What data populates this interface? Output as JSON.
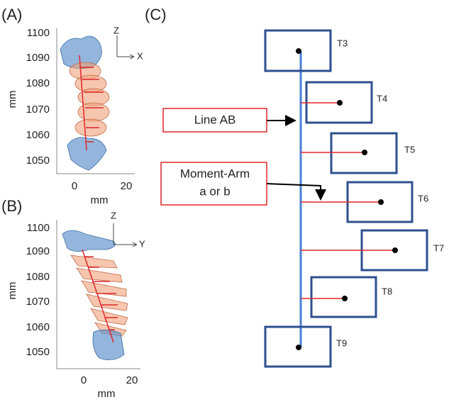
{
  "panels": [
    {
      "label": "(A)",
      "x_label": "mm",
      "y_label": "mm",
      "xticks": [
        0,
        20
      ],
      "yticks": [
        1100,
        1090,
        1080,
        1070,
        1060,
        1050
      ],
      "axis_labels": [
        "Z",
        "X"
      ]
    },
    {
      "label": "(B)",
      "x_label": "mm",
      "y_label": "mm",
      "xticks": [
        0,
        20
      ],
      "yticks": [
        1100,
        1090,
        1080,
        1070,
        1060,
        1050
      ],
      "axis_labels": [
        "Z",
        "Y"
      ]
    }
  ],
  "diagram": {
    "label": "(C)",
    "vertebrae": [
      "T3",
      "T4",
      "T5",
      "T6",
      "T7",
      "T8",
      "T9"
    ],
    "callouts": [
      [
        "Line AB"
      ],
      [
        "Moment-Arm",
        "a or b"
      ]
    ]
  }
}
